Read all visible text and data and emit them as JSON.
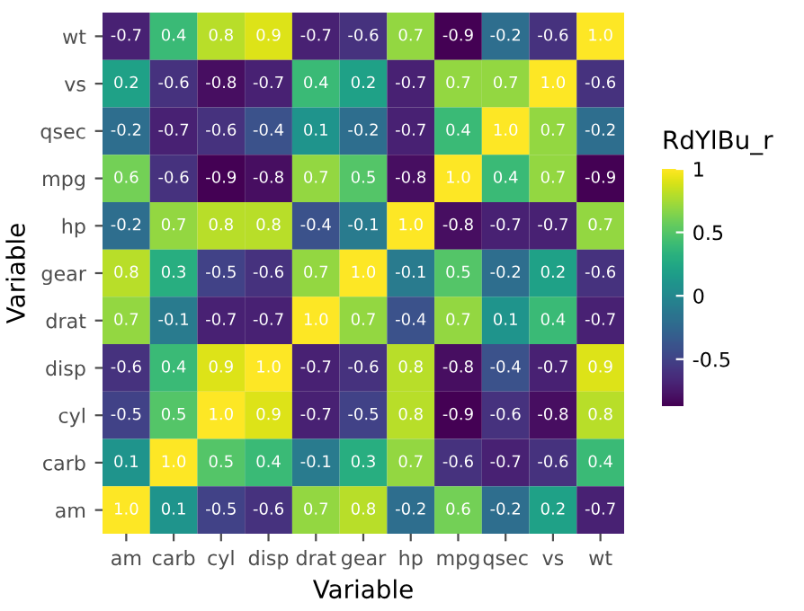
{
  "chart_data": {
    "type": "heatmap",
    "xlabel": "Variable",
    "ylabel": "Variable",
    "clabel": "RdYlBu_r",
    "categories": [
      "am",
      "carb",
      "cyl",
      "disp",
      "drat",
      "gear",
      "hp",
      "mpg",
      "qsec",
      "vs",
      "wt"
    ],
    "y_categories": [
      "wt",
      "vs",
      "qsec",
      "mpg",
      "hp",
      "gear",
      "drat",
      "disp",
      "cyl",
      "carb",
      "am"
    ],
    "cells": [
      [
        -0.7,
        0.4,
        0.8,
        0.9,
        -0.7,
        -0.6,
        0.7,
        -0.9,
        -0.2,
        -0.6,
        1.0
      ],
      [
        0.2,
        -0.6,
        -0.8,
        -0.7,
        0.4,
        0.2,
        -0.7,
        0.7,
        0.7,
        1.0,
        -0.6
      ],
      [
        -0.2,
        -0.7,
        -0.6,
        -0.4,
        0.1,
        -0.2,
        -0.7,
        0.4,
        1.0,
        0.7,
        -0.2
      ],
      [
        0.6,
        -0.6,
        -0.9,
        -0.8,
        0.7,
        0.5,
        -0.8,
        1.0,
        0.4,
        0.7,
        -0.9
      ],
      [
        -0.2,
        0.7,
        0.8,
        0.8,
        -0.4,
        -0.1,
        1.0,
        -0.8,
        -0.7,
        -0.7,
        0.7
      ],
      [
        0.8,
        0.3,
        -0.5,
        -0.6,
        0.7,
        1.0,
        -0.1,
        0.5,
        -0.2,
        0.2,
        -0.6
      ],
      [
        0.7,
        -0.1,
        -0.7,
        -0.7,
        1.0,
        0.7,
        -0.4,
        0.7,
        0.1,
        0.4,
        -0.7
      ],
      [
        -0.6,
        0.4,
        0.9,
        1.0,
        -0.7,
        -0.6,
        0.8,
        -0.8,
        -0.4,
        -0.7,
        0.9
      ],
      [
        -0.5,
        0.5,
        1.0,
        0.9,
        -0.7,
        -0.5,
        0.8,
        -0.9,
        -0.6,
        -0.8,
        0.8
      ],
      [
        0.1,
        1.0,
        0.5,
        0.4,
        -0.1,
        0.3,
        0.7,
        -0.6,
        -0.7,
        -0.6,
        0.4
      ],
      [
        1.0,
        0.1,
        -0.5,
        -0.6,
        0.7,
        0.8,
        -0.2,
        0.6,
        -0.2,
        0.2,
        -0.7
      ]
    ],
    "cell_labels": [
      [
        "-0.7",
        "0.4",
        "0.8",
        "0.9",
        "-0.7",
        "-0.6",
        "0.7",
        "-0.9",
        "-0.2",
        "-0.6",
        "1.0"
      ],
      [
        "0.2",
        "-0.6",
        "-0.8",
        "-0.7",
        "0.4",
        "0.2",
        "-0.7",
        "0.7",
        "0.7",
        "1.0",
        "-0.6"
      ],
      [
        "-0.2",
        "-0.7",
        "-0.6",
        "-0.4",
        "0.1",
        "-0.2",
        "-0.7",
        "0.4",
        "1.0",
        "0.7",
        "-0.2"
      ],
      [
        "0.6",
        "-0.6",
        "-0.9",
        "-0.8",
        "0.7",
        "0.5",
        "-0.8",
        "1.0",
        "0.4",
        "0.7",
        "-0.9"
      ],
      [
        "-0.2",
        "0.7",
        "0.8",
        "0.8",
        "-0.4",
        "-0.1",
        "1.0",
        "-0.8",
        "-0.7",
        "-0.7",
        "0.7"
      ],
      [
        "0.8",
        "0.3",
        "-0.5",
        "-0.6",
        "0.7",
        "1.0",
        "-0.1",
        "0.5",
        "-0.2",
        "0.2",
        "-0.6"
      ],
      [
        "0.7",
        "-0.1",
        "-0.7",
        "-0.7",
        "1.0",
        "0.7",
        "-0.4",
        "0.7",
        "0.1",
        "0.4",
        "-0.7"
      ],
      [
        "-0.6",
        "0.4",
        "0.9",
        "1.0",
        "-0.7",
        "-0.6",
        "0.8",
        "-0.8",
        "-0.4",
        "-0.7",
        "0.9"
      ],
      [
        "-0.5",
        "0.5",
        "1.0",
        "0.9",
        "-0.7",
        "-0.5",
        "0.8",
        "-0.9",
        "-0.6",
        "-0.8",
        "0.8"
      ],
      [
        "0.1",
        "1.0",
        "0.5",
        "0.4",
        "-0.1",
        "0.3",
        "0.7",
        "-0.6",
        "-0.7",
        "-0.6",
        "0.4"
      ],
      [
        "1.0",
        "0.1",
        "-0.5",
        "-0.6",
        "0.7",
        "0.8",
        "-0.2",
        "0.6",
        "-0.2",
        "0.2",
        "-0.7"
      ]
    ],
    "clim": [
      -0.87,
      1
    ],
    "cticks": [
      {
        "value": -0.5,
        "label": "-0.5"
      },
      0,
      0.5,
      1
    ],
    "data_labels": true
  }
}
